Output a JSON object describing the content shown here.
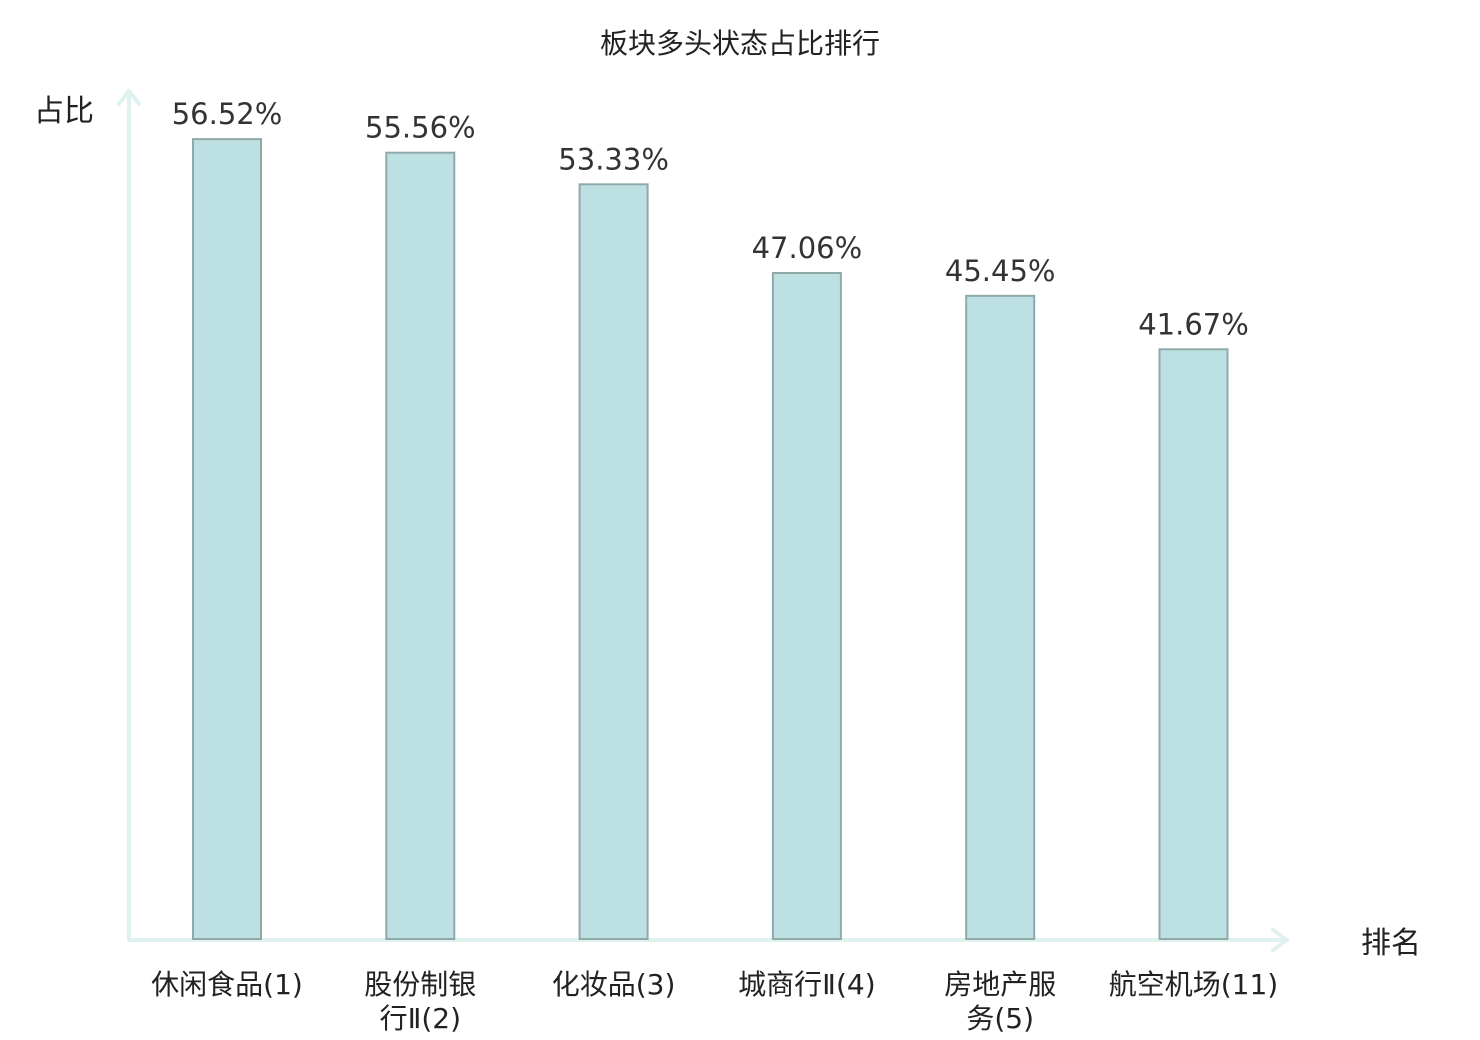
{
  "chart_data": {
    "type": "bar",
    "title": "板块多头状态占比排行",
    "xlabel": "排名",
    "ylabel": "占比",
    "categories": [
      [
        "休闲食品(1)"
      ],
      [
        "股份制银",
        "行Ⅱ(2)"
      ],
      [
        "化妆品(3)"
      ],
      [
        "城商行Ⅱ(4)"
      ],
      [
        "房地产服",
        "务(5)"
      ],
      [
        "航空机场(11)"
      ]
    ],
    "values": [
      56.52,
      55.56,
      53.33,
      47.06,
      45.45,
      41.67
    ],
    "value_labels": [
      "56.52%",
      "55.56%",
      "53.33%",
      "47.06%",
      "45.45%",
      "41.67%"
    ],
    "highlight_index": 5,
    "ylim": [
      0,
      60
    ],
    "grid": false,
    "legend": "none",
    "colors": {
      "bar_fill": "#bde1e3",
      "bar_stroke": "#8fa9a9",
      "axis": "#dff2ef",
      "text": "#222222",
      "value_text": "#333333",
      "highlight_text": "#e0201b"
    }
  }
}
